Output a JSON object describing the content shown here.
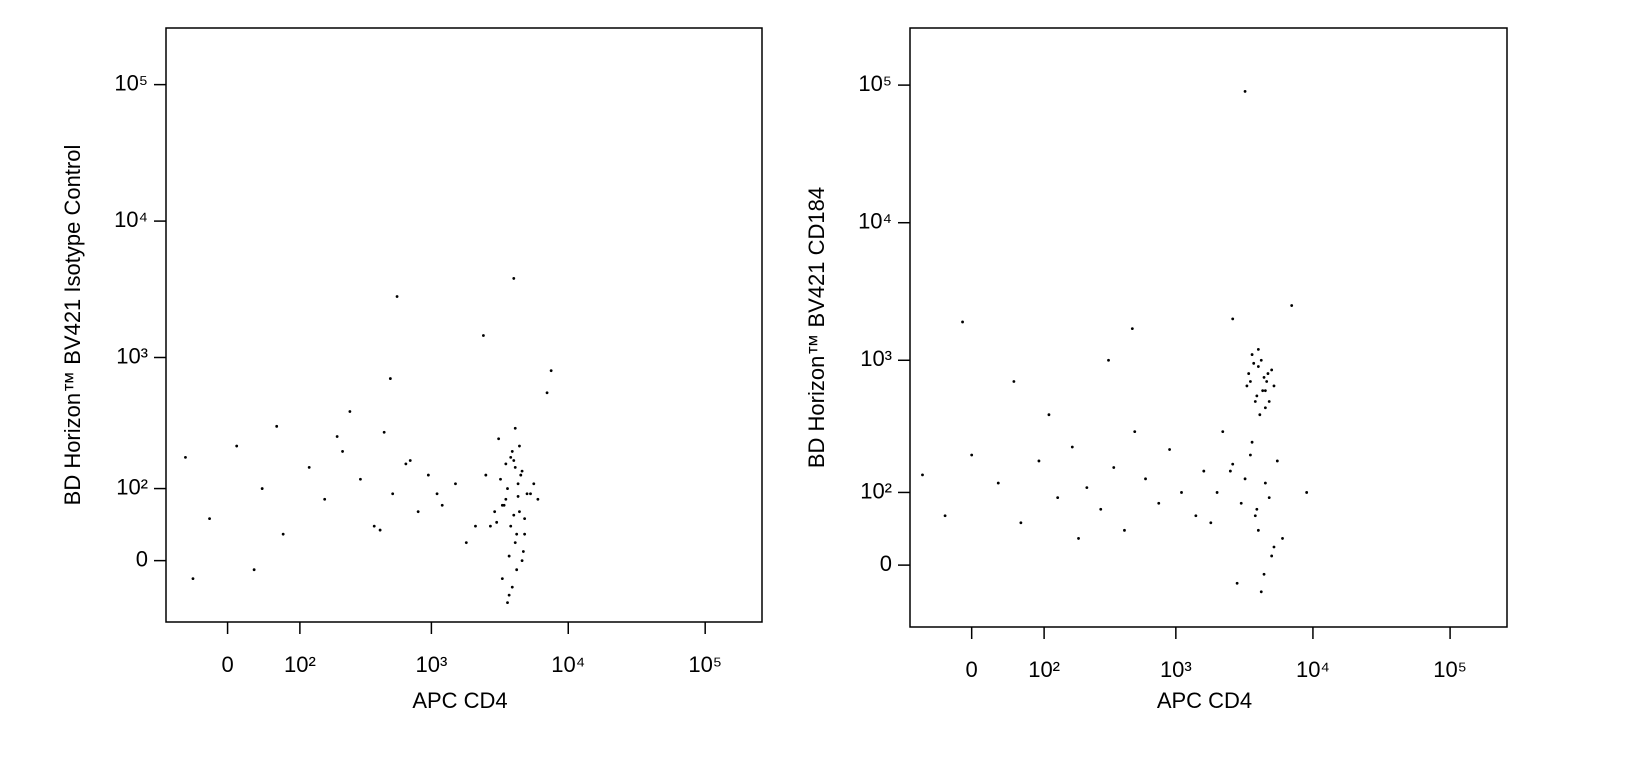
{
  "chart_data": [
    {
      "type": "scatter",
      "x_label": "APC CD4",
      "y_label": "BD Horizon™ BV421 Isotype Control",
      "scale": "biexponential",
      "color": "#000000",
      "xlim": [
        -80,
        260000
      ],
      "ylim": [
        -80,
        260000
      ],
      "xticks": [
        0,
        {
          "value": 100,
          "label": "10²"
        },
        {
          "value": 1000,
          "label": "10³"
        },
        {
          "value": 10000,
          "label": "10⁴"
        },
        {
          "value": 100000,
          "label": "10⁵"
        }
      ],
      "yticks": [
        0,
        {
          "value": 100,
          "label": "10²"
        },
        {
          "value": 1000,
          "label": "10³"
        },
        {
          "value": 10000,
          "label": "10⁴"
        },
        {
          "value": 100000,
          "label": "10⁵"
        }
      ],
      "x": [
        3200,
        3500,
        3800,
        4100,
        4400,
        4700,
        5000,
        3300,
        3600,
        3900,
        4200,
        4500,
        4800,
        3400,
        3700,
        4000,
        4300,
        4600,
        2900,
        5300,
        3100,
        3600,
        4100,
        4600,
        3800,
        4200,
        2700,
        5600,
        3300,
        4400,
        3900,
        4000,
        3500,
        4800,
        4300,
        3700,
        2500,
        6000,
        4100,
        3000,
        -50,
        -20,
        10,
        40,
        70,
        120,
        160,
        220,
        300,
        380,
        450,
        520,
        650,
        800,
        950,
        1200,
        1500,
        1800,
        2100,
        60,
        200,
        420,
        700,
        1100,
        2400,
        -40,
        30,
        250,
        560,
        7000,
        4000,
        500,
        7500
      ],
      "y": [
        120,
        80,
        40,
        150,
        60,
        10,
        90,
        -20,
        100,
        200,
        30,
        130,
        50,
        70,
        -40,
        170,
        110,
        0,
        60,
        90,
        250,
        -50,
        20,
        140,
        180,
        -10,
        40,
        110,
        70,
        220,
        -30,
        55,
        160,
        30,
        85,
        5,
        130,
        80,
        300,
        45,
        180,
        50,
        220,
        100,
        30,
        150,
        80,
        200,
        120,
        40,
        280,
        90,
        160,
        60,
        130,
        70,
        110,
        20,
        40,
        310,
        260,
        35,
        170,
        90,
        1450,
        -20,
        -10,
        400,
        2800,
        550,
        3800,
        700,
        800
      ]
    },
    {
      "type": "scatter",
      "x_label": "APC CD4",
      "y_label": "BD Horizon™ BV421 CD184",
      "scale": "biexponential",
      "color": "#000000",
      "xlim": [
        -80,
        260000
      ],
      "ylim": [
        -80,
        260000
      ],
      "xticks": [
        0,
        {
          "value": 100,
          "label": "10²"
        },
        {
          "value": 1000,
          "label": "10³"
        },
        {
          "value": 10000,
          "label": "10⁴"
        },
        {
          "value": 100000,
          "label": "10⁵"
        }
      ],
      "yticks": [
        0,
        {
          "value": 100,
          "label": "10²"
        },
        {
          "value": 1000,
          "label": "10³"
        },
        {
          "value": 10000,
          "label": "10⁴"
        },
        {
          "value": 100000,
          "label": "10⁵"
        }
      ],
      "x": [
        3500,
        4000,
        4500,
        3800,
        4200,
        4700,
        3300,
        3900,
        4400,
        5000,
        3600,
        4100,
        4600,
        3700,
        4300,
        4800,
        3400,
        5200,
        4000,
        4500,
        2500,
        3000,
        3500,
        4000,
        4500,
        5000,
        2000,
        2800,
        3800,
        5500,
        4200,
        3200,
        4800,
        1800,
        6000,
        3600,
        4400,
        2600,
        5200,
        3900,
        -60,
        -30,
        0,
        30,
        60,
        90,
        130,
        170,
        220,
        280,
        350,
        420,
        500,
        600,
        750,
        900,
        1100,
        1400,
        -10,
        50,
        110,
        190,
        320,
        480,
        2200,
        1600,
        2600,
        9000,
        7000,
        3200
      ],
      "y": [
        700,
        900,
        600,
        500,
        1000,
        800,
        650,
        550,
        750,
        850,
        1100,
        400,
        700,
        950,
        600,
        500,
        800,
        650,
        1200,
        450,
        150,
        80,
        200,
        40,
        120,
        10,
        100,
        -20,
        60,
        180,
        -30,
        130,
        90,
        50,
        30,
        250,
        -10,
        170,
        20,
        70,
        140,
        60,
        200,
        120,
        50,
        180,
        90,
        230,
        110,
        70,
        160,
        40,
        300,
        130,
        80,
        220,
        100,
        60,
        1900,
        700,
        400,
        30,
        1000,
        1700,
        300,
        150,
        2000,
        100,
        2500,
        90000
      ]
    }
  ]
}
